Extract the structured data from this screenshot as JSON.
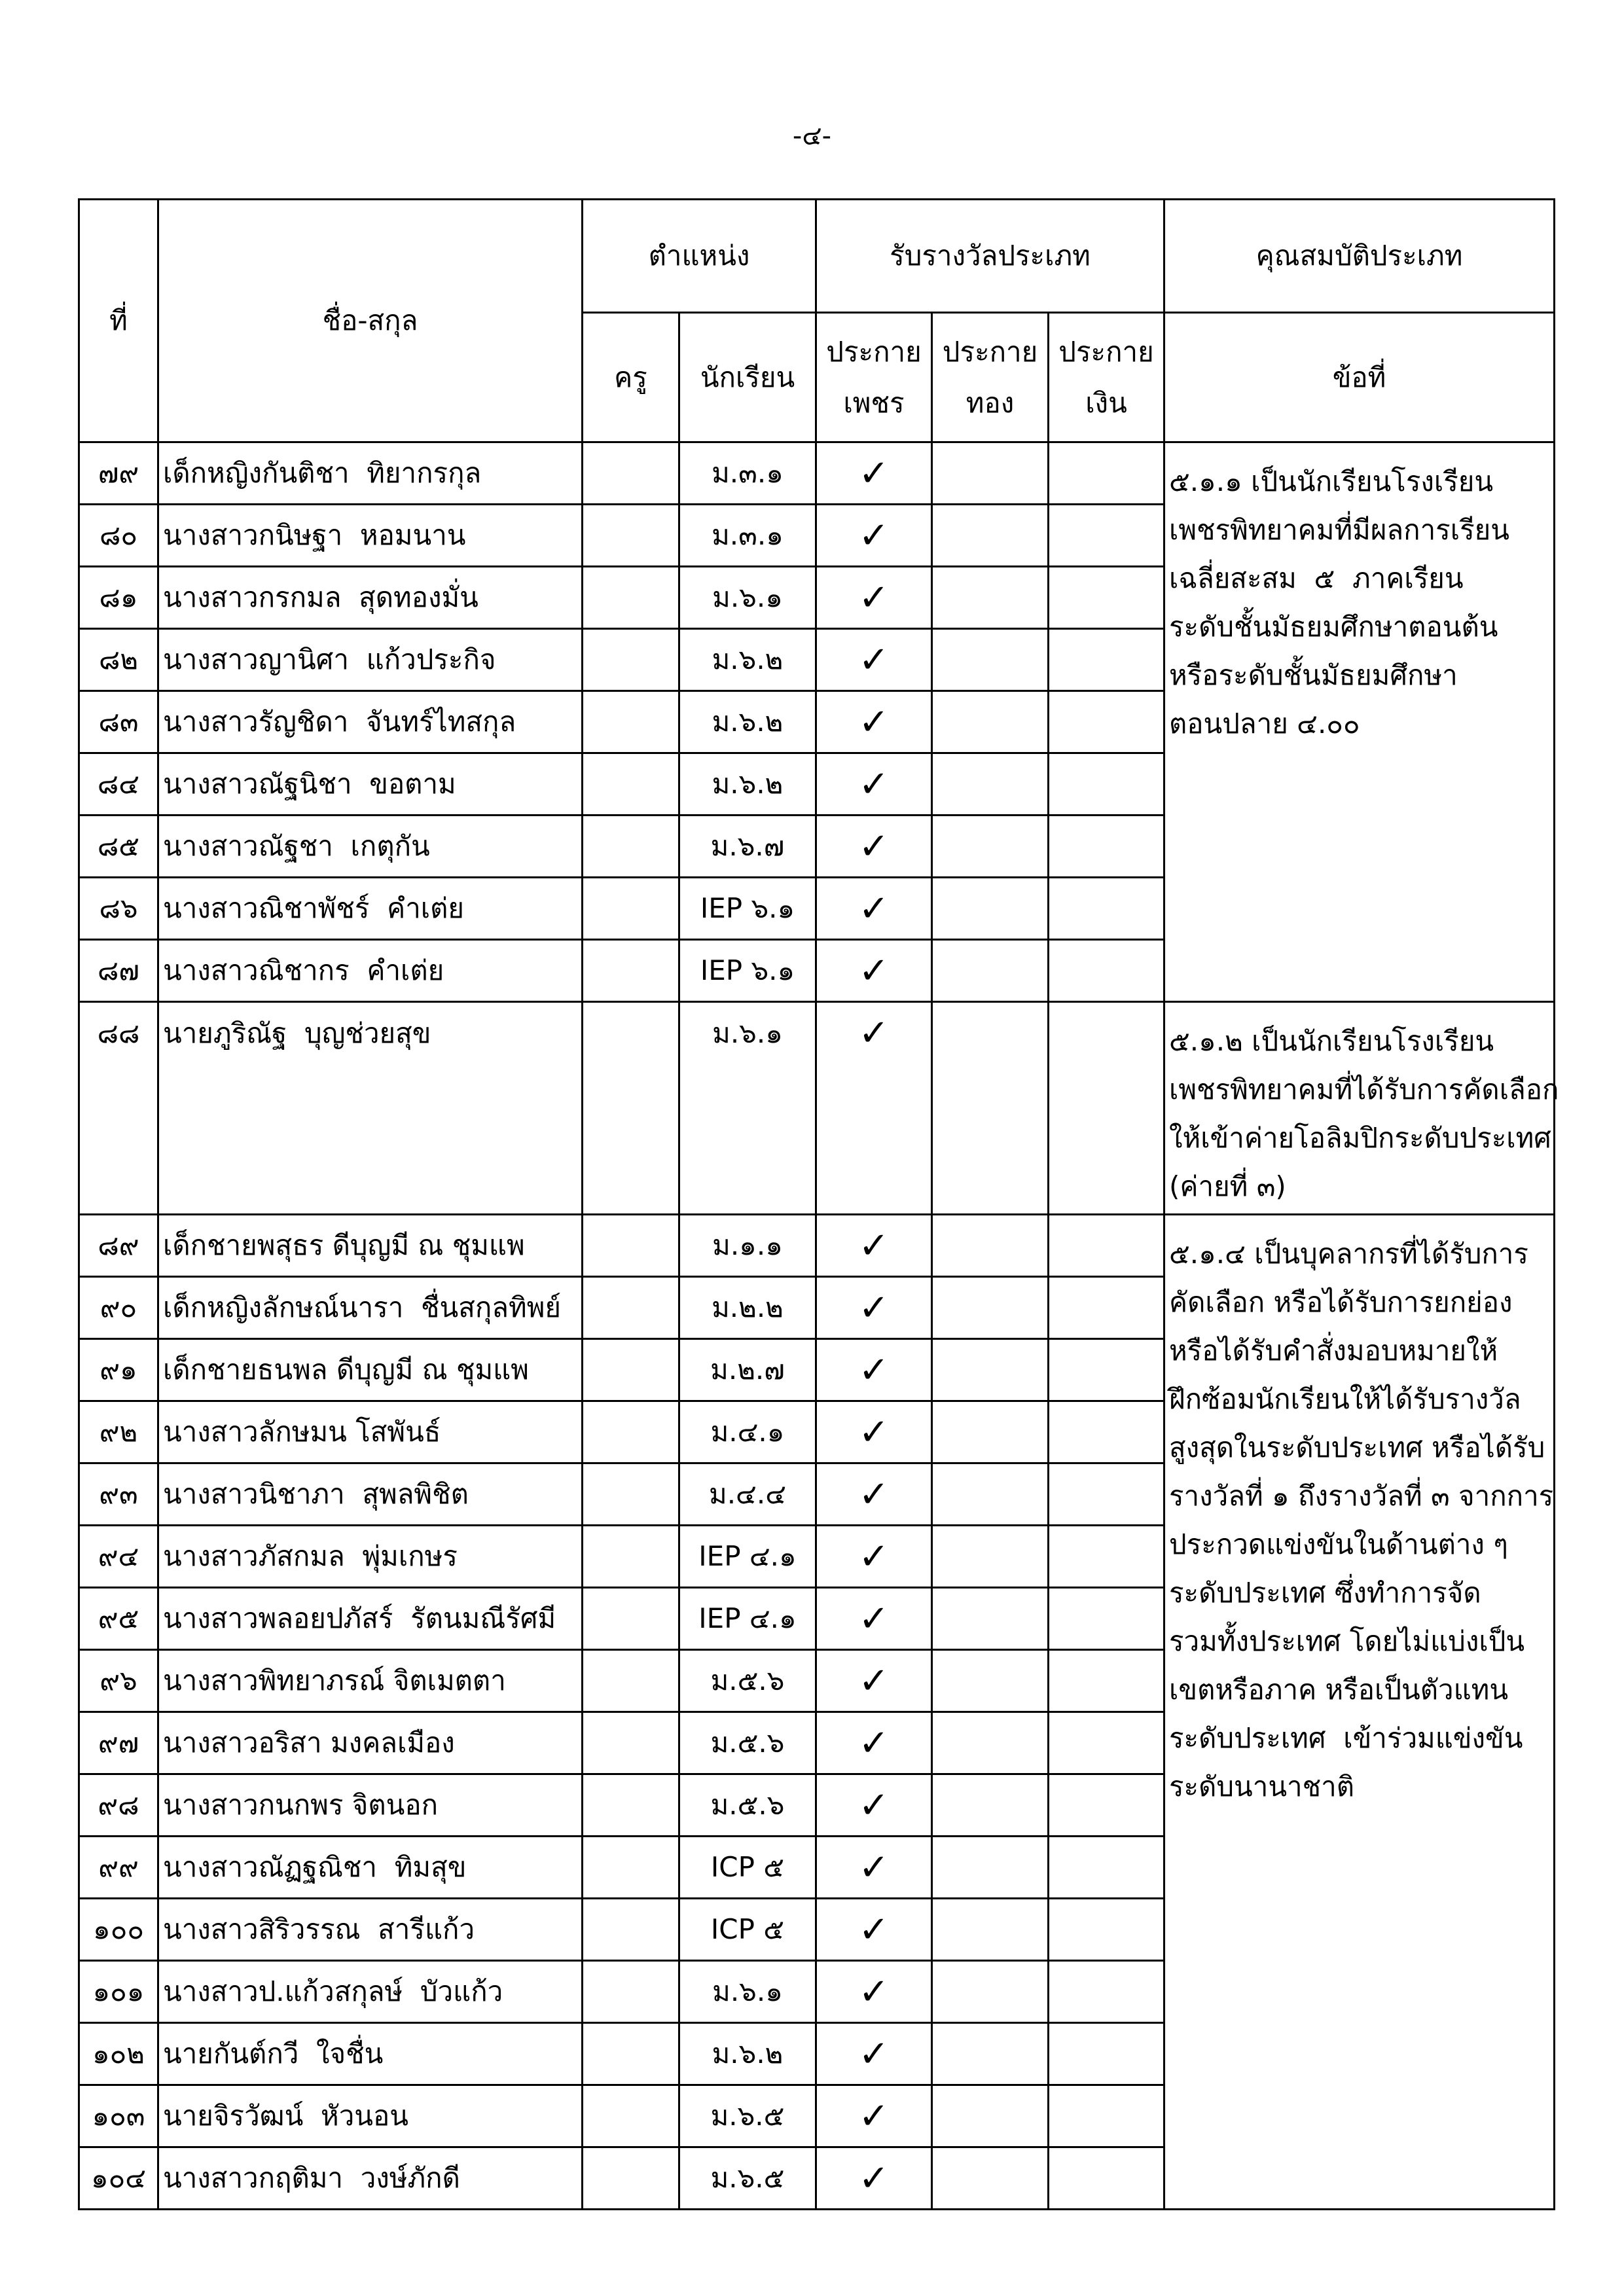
{
  "page_number": "-๔-",
  "table": {
    "header": {
      "no": "ที่",
      "name": "ชื่อ-สกุล",
      "position": "ตำแหน่ง",
      "award": "รับรางวัลประเภท",
      "qualification": "คุณสมบัติประเภท",
      "teacher": "ครู",
      "student": "นักเรียน",
      "diamond": [
        "ประกาย",
        "เพชร"
      ],
      "gold": [
        "ประกาย",
        "ทอง"
      ],
      "silver": [
        "ประกาย",
        "เงิน"
      ],
      "clause": "ข้อที่"
    },
    "groups": [
      {
        "students": [
          {
            "no": "๗๙",
            "name": "เด็กหญิงกันติชา  ทิยากรกุล",
            "class": "ม.๓.๑",
            "diamond": "✓"
          },
          {
            "no": "๘๐",
            "name": "นางสาวกนิษฐา  หอมนาน",
            "class": "ม.๓.๑",
            "diamond": "✓"
          },
          {
            "no": "๘๑",
            "name": "นางสาวกรกมล  สุดทองมั่น",
            "class": "ม.๖.๑",
            "diamond": "✓"
          },
          {
            "no": "๘๒",
            "name": "นางสาวญานิศา  แก้วประกิจ",
            "class": "ม.๖.๒",
            "diamond": "✓"
          },
          {
            "no": "๘๓",
            "name": "นางสาวรัญชิดา  จันทร์ไทสกุล",
            "class": "ม.๖.๒",
            "diamond": "✓"
          },
          {
            "no": "๘๔",
            "name": "นางสาวณัฐนิชา  ขอตาม",
            "class": "ม.๖.๒",
            "diamond": "✓"
          },
          {
            "no": "๘๕",
            "name": "นางสาวณัฐชา  เกตุกัน",
            "class": "ม.๖.๗",
            "diamond": "✓"
          },
          {
            "no": "๘๖",
            "name": "นางสาวณิชาพัชร์  คำเต่ย",
            "class": "IEP ๖.๑",
            "diamond": "✓"
          },
          {
            "no": "๘๗",
            "name": "นางสาวณิชากร  คำเต่ย",
            "class": "IEP ๖.๑",
            "diamond": "✓"
          }
        ],
        "criteria": [
          "๕.๑.๑ เป็นนักเรียนโรงเรียน",
          "เพชรพิทยาคมที่มีผลการเรียน",
          "เฉลี่ยสะสม  ๕  ภาคเรียน",
          "ระดับชั้นมัธยมศึกษาตอนต้น",
          "หรือระดับชั้นมัธยมศึกษา",
          "ตอนปลาย ๔.๐๐"
        ]
      },
      {
        "students": [
          {
            "no": "๘๘",
            "name": "นายภูริณัฐ  บุญช่วยสุข",
            "class": "ม.๖.๑",
            "diamond": "✓"
          }
        ],
        "criteria": [
          "๕.๑.๒ เป็นนักเรียนโรงเรียน",
          "เพชรพิทยาคมที่ได้รับการคัดเลือก",
          "ให้เข้าค่ายโอลิมปิกระดับประเทศ",
          "(ค่ายที่ ๓)"
        ]
      },
      {
        "students": [
          {
            "no": "๘๙",
            "name": "เด็กชายพสุธร ดีบุญมี ณ ชุมแพ",
            "class": "ม.๑.๑",
            "diamond": "✓"
          },
          {
            "no": "๙๐",
            "name": "เด็กหญิงลักษณ์นารา  ชื่นสกุลทิพย์",
            "class": "ม.๒.๒",
            "diamond": "✓"
          },
          {
            "no": "๙๑",
            "name": "เด็กชายธนพล ดีบุญมี ณ ชุมแพ",
            "class": "ม.๒.๗",
            "diamond": "✓"
          },
          {
            "no": "๙๒",
            "name": "นางสาวลักษมน โสพันธ์",
            "class": "ม.๔.๑",
            "diamond": "✓"
          },
          {
            "no": "๙๓",
            "name": "นางสาวนิชาภา  สุพลพิชิต",
            "class": "ม.๔.๔",
            "diamond": "✓"
          },
          {
            "no": "๙๔",
            "name": "นางสาวภัสกมล  พุ่มเกษร",
            "class": "IEP ๔.๑",
            "diamond": "✓"
          },
          {
            "no": "๙๕",
            "name": "นางสาวพลอยปภัสร์  รัตนมณีรัศมี",
            "class": "IEP ๔.๑",
            "diamond": "✓"
          },
          {
            "no": "๙๖",
            "name": "นางสาวพิทยาภรณ์ จิตเมตตา",
            "class": "ม.๕.๖",
            "diamond": "✓"
          },
          {
            "no": "๙๗",
            "name": "นางสาวอริสา มงคลเมือง",
            "class": "ม.๕.๖",
            "diamond": "✓"
          },
          {
            "no": "๙๘",
            "name": "นางสาวกนกพร จิตนอก",
            "class": "ม.๕.๖",
            "diamond": "✓"
          },
          {
            "no": "๙๙",
            "name": "นางสาวณัฏฐณิชา  ทิมสุข",
            "class": "ICP ๕",
            "diamond": "✓"
          },
          {
            "no": "๑๐๐",
            "name": "นางสาวสิริวรรณ  สารีแก้ว",
            "class": "ICP ๕",
            "diamond": "✓"
          },
          {
            "no": "๑๐๑",
            "name": "นางสาวป.แก้วสกุลษ์  บัวแก้ว",
            "class": "ม.๖.๑",
            "diamond": "✓"
          },
          {
            "no": "๑๐๒",
            "name": "นายกันต์กวี  ใจชื่น",
            "class": "ม.๖.๒",
            "diamond": "✓"
          },
          {
            "no": "๑๐๓",
            "name": "นายจิรวัฒน์  หัวนอน",
            "class": "ม.๖.๕",
            "diamond": "✓"
          },
          {
            "no": "๑๐๔",
            "name": "นางสาวกฤติมา  วงษ์ภักดี",
            "class": "ม.๖.๕",
            "diamond": "✓"
          }
        ],
        "criteria": [
          "๕.๑.๔ เป็นบุคลากรที่ได้รับการ",
          "คัดเลือก หรือได้รับการยกย่อง",
          "หรือได้รับคำสั่งมอบหมายให้",
          "ฝึกซ้อมนักเรียนให้ได้รับรางวัล",
          "สูงสุดในระดับประเทศ หรือได้รับ",
          "รางวัลที่ ๑ ถึงรางวัลที่ ๓ จากการ",
          "ประกวดแข่งขันในด้านต่าง ๆ",
          "ระดับประเทศ ซึ่งทำการจัด",
          "รวมทั้งประเทศ โดยไม่แบ่งเป็น",
          "เขตหรือภาค หรือเป็นตัวแทน",
          "ระดับประเทศ  เข้าร่วมแข่งขัน",
          "ระดับนานาชาติ"
        ]
      }
    ]
  }
}
